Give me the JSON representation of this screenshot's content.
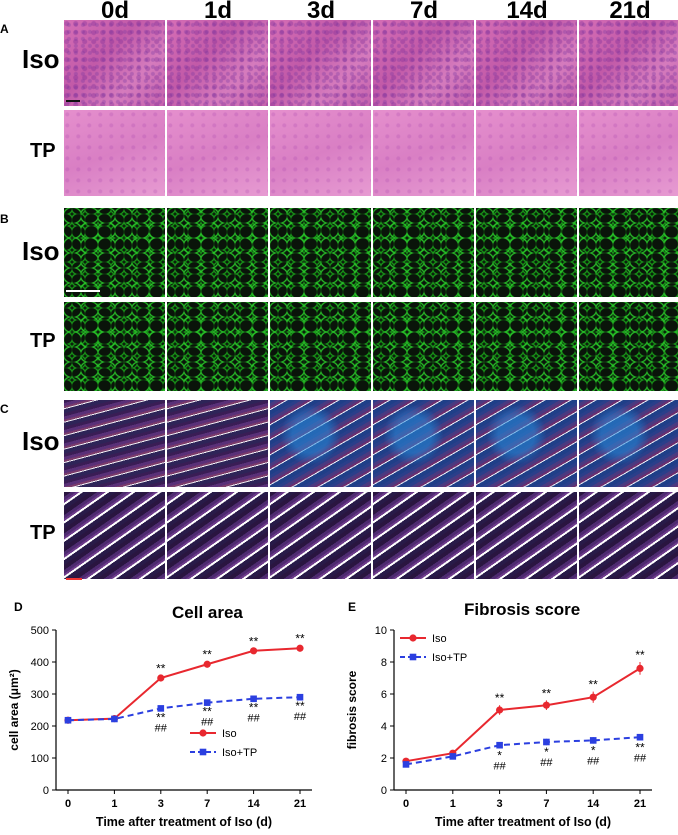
{
  "panel_letters": [
    "A",
    "B",
    "C",
    "D",
    "E"
  ],
  "column_headers": [
    "0d",
    "1d",
    "3d",
    "7d",
    "14d",
    "21d"
  ],
  "row_labels": [
    "Iso",
    "TP"
  ],
  "chart_data": [
    {
      "type": "line",
      "title": "Cell area",
      "xlabel": "Time after treatment of Iso (d)",
      "ylabel": "cell area (μm²)",
      "categories": [
        "0",
        "1",
        "3",
        "7",
        "14",
        "21"
      ],
      "yticks": [
        0,
        100,
        200,
        300,
        400,
        500
      ],
      "ylim": [
        0,
        500
      ],
      "grid": false,
      "legend": "lower-right",
      "series": [
        {
          "name": "Iso",
          "color": "#e8282f",
          "style": "solid",
          "marker": "circle",
          "values": [
            218,
            223,
            350,
            393,
            435,
            443
          ],
          "errors": [
            5,
            5,
            8,
            8,
            7,
            9
          ],
          "annotations_above": [
            "",
            "",
            "**",
            "**",
            "**",
            "**"
          ]
        },
        {
          "name": "Iso+TP",
          "color": "#2b3fe0",
          "style": "dashed",
          "marker": "square",
          "values": [
            218,
            222,
            255,
            273,
            285,
            290
          ],
          "errors": [
            5,
            4,
            6,
            6,
            6,
            6
          ],
          "annotations_below": [
            "",
            "",
            "**",
            "**",
            "**",
            "**"
          ],
          "annotations_below2": [
            "",
            "",
            "##",
            "##",
            "##",
            "##"
          ]
        }
      ]
    },
    {
      "type": "line",
      "title": "Fibrosis score",
      "xlabel": "Time after treatment of Iso (d)",
      "ylabel": "fibrosis  score",
      "categories": [
        "0",
        "1",
        "3",
        "7",
        "14",
        "21"
      ],
      "yticks": [
        0,
        2,
        4,
        6,
        8,
        10
      ],
      "ylim": [
        0,
        10
      ],
      "grid": false,
      "legend": "upper-left",
      "series": [
        {
          "name": "Iso",
          "color": "#e8282f",
          "style": "solid",
          "marker": "circle",
          "values": [
            1.8,
            2.3,
            5.0,
            5.3,
            5.8,
            7.6
          ],
          "errors": [
            0.15,
            0.2,
            0.3,
            0.3,
            0.35,
            0.4
          ],
          "annotations_above": [
            "",
            "",
            "**",
            "**",
            "**",
            "**"
          ]
        },
        {
          "name": "Iso+TP",
          "color": "#2b3fe0",
          "style": "dashed",
          "marker": "square",
          "values": [
            1.6,
            2.1,
            2.8,
            3.0,
            3.1,
            3.3
          ],
          "errors": [
            0.12,
            0.15,
            0.2,
            0.2,
            0.2,
            0.2
          ],
          "annotations_below": [
            "",
            "",
            "*",
            "*",
            "*",
            "**"
          ],
          "annotations_below2": [
            "",
            "",
            "##",
            "##",
            "##",
            "##"
          ]
        }
      ]
    }
  ]
}
